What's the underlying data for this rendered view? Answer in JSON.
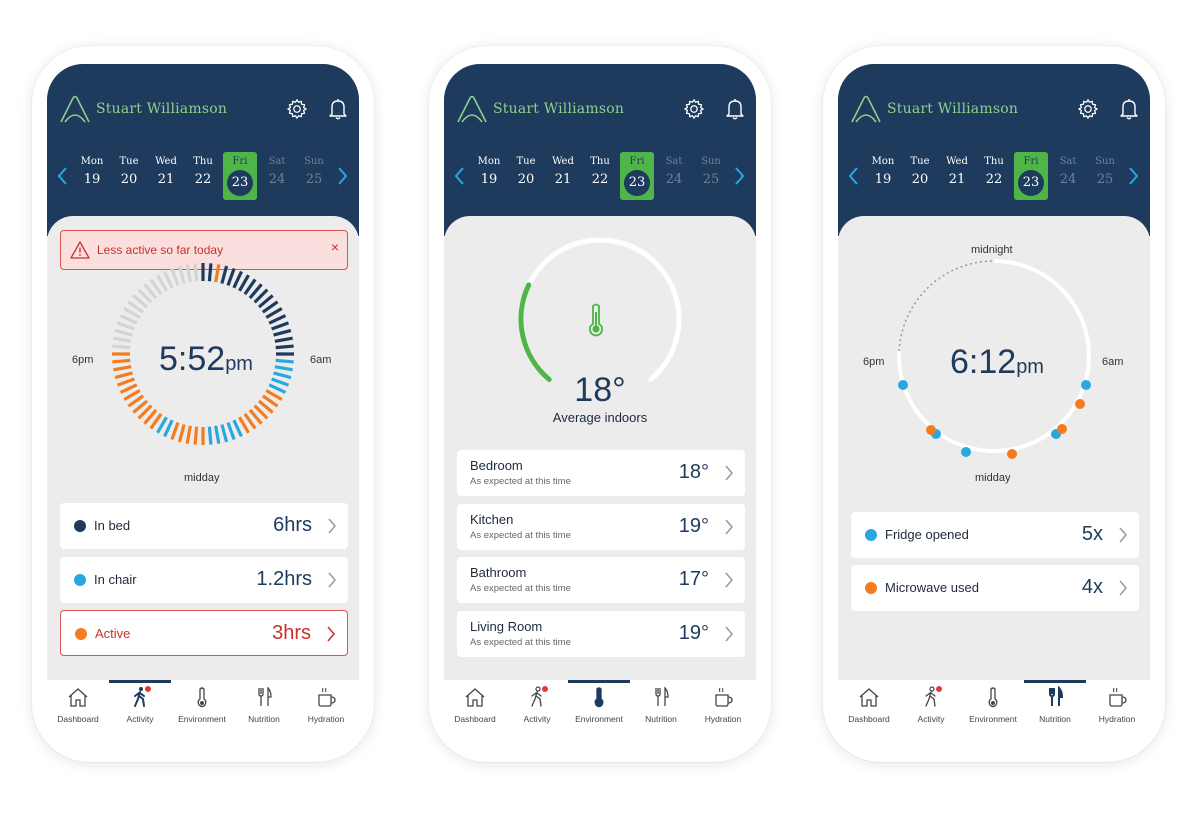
{
  "user_name": "Stuart Williamson",
  "days": [
    {
      "name": "Mon",
      "date": "19"
    },
    {
      "name": "Tue",
      "date": "20"
    },
    {
      "name": "Wed",
      "date": "21"
    },
    {
      "name": "Thu",
      "date": "22"
    },
    {
      "name": "Fri",
      "date": "23"
    },
    {
      "name": "Sat",
      "date": "24"
    },
    {
      "name": "Sun",
      "date": "25"
    }
  ],
  "selected_day": "Fri",
  "nav": [
    "Dashboard",
    "Activity",
    "Environment",
    "Nutrition",
    "Hydration"
  ],
  "activity": {
    "alert": "Less active so far today",
    "alert_close": "×",
    "time": "5:52",
    "ampm": "pm",
    "label_left": "6pm",
    "label_right": "6am",
    "label_bottom": "midday",
    "items": [
      {
        "name": "In bed",
        "value": "6hrs",
        "color": "#1e3a5c"
      },
      {
        "name": "In chair",
        "value": "1.2hrs",
        "color": "#29a8e0"
      },
      {
        "name": "Active",
        "value": "3hrs",
        "color": "#f47c20"
      }
    ]
  },
  "environment": {
    "temperature": "18°",
    "caption": "Average indoors",
    "gauge_fraction": 0.27,
    "rooms": [
      {
        "name": "Bedroom",
        "sub": "As expected at this time",
        "value": "18°"
      },
      {
        "name": "Kitchen",
        "sub": "As expected at this time",
        "value": "19°"
      },
      {
        "name": "Bathroom",
        "sub": "As expected at this time",
        "value": "17°"
      },
      {
        "name": "Living Room",
        "sub": "As expected at this time",
        "value": "19°"
      }
    ]
  },
  "nutrition": {
    "time": "6:12",
    "ampm": "pm",
    "label_top": "midnight",
    "label_left": "6pm",
    "label_right": "6am",
    "label_bottom": "midday",
    "items": [
      {
        "name": "Fridge opened",
        "value": "5x",
        "color": "#29a8e0"
      },
      {
        "name": "Microwave used",
        "value": "4x",
        "color": "#f47c20"
      }
    ]
  },
  "colors": {
    "header": "#1e3a5c",
    "green": "#4fb549",
    "bed": "#1e3a5c",
    "chair": "#29a8e0",
    "active": "#f47c20",
    "empty": "#d4d4d4",
    "alert": "#c9302c"
  }
}
